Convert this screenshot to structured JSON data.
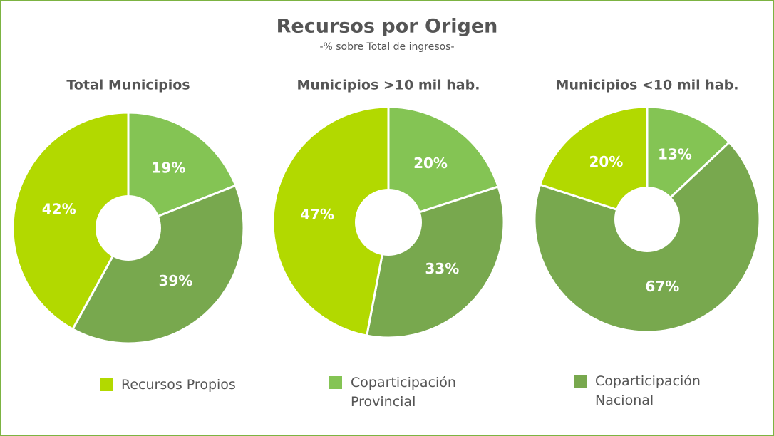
{
  "title": "Recursos por Origen",
  "subtitle": "-% sobre Total de ingresos-",
  "chart_data": [
    {
      "type": "pie",
      "title": "Total Municipios",
      "categories": [
        "Coparticipación Provincial",
        "Coparticipación Nacional",
        "Recursos Propios"
      ],
      "values": [
        19,
        39,
        42
      ],
      "value_labels": [
        "19%",
        "39%",
        "42%"
      ],
      "colors": [
        "#84c454",
        "#78a84e",
        "#b2d900"
      ]
    },
    {
      "type": "pie",
      "title": "Municipios >10 mil hab.",
      "categories": [
        "Coparticipación Provincial",
        "Coparticipación Nacional",
        "Recursos Propios"
      ],
      "values": [
        20,
        33,
        47
      ],
      "value_labels": [
        "20%",
        "33%",
        "47%"
      ],
      "colors": [
        "#84c454",
        "#78a84e",
        "#b2d900"
      ]
    },
    {
      "type": "pie",
      "title": "Municipios <10 mil hab.",
      "categories": [
        "Coparticipación Provincial",
        "Coparticipación Nacional",
        "Recursos Propios"
      ],
      "values": [
        13,
        67,
        20
      ],
      "value_labels": [
        "13%",
        "67%",
        "20%"
      ],
      "colors": [
        "#84c454",
        "#78a84e",
        "#b2d900"
      ]
    }
  ]
}
